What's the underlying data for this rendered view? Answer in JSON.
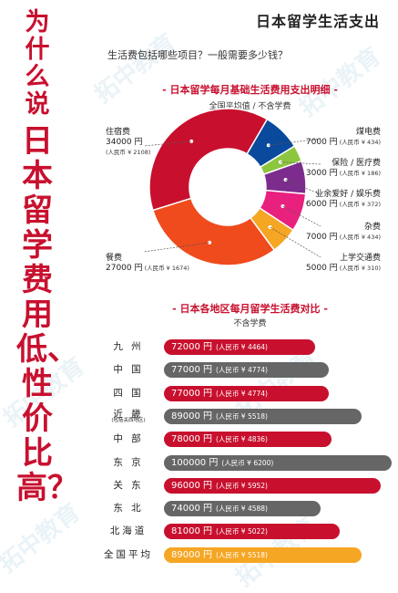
{
  "side_title": {
    "line1": "为什么说",
    "line2": "日本留学费用低、性价比高？"
  },
  "page_title": "日本留学生活支出",
  "question": "生活费包括哪些项目？一般需要多少钱？",
  "watermark": "拓中教育",
  "pie_section": {
    "title": "- 日本留学每月基础生活费用支出明细 -",
    "subtitle": "全国平均值 / 不含学费"
  },
  "bar_section": {
    "title": "- 日本各地区每月留学生活费对比 -",
    "subtitle": "不含学费"
  },
  "chart_data": [
    {
      "type": "pie",
      "title": "日本留学每月基础生活费用支出明细",
      "subtitle": "全国平均值 / 不含学费",
      "unit": "円",
      "categories": [
        "住宿费",
        "煤电费",
        "保险 / 医疗费",
        "业余爱好 / 娱乐费",
        "杂费",
        "上学交通费",
        "餐费"
      ],
      "values": [
        34000,
        7000,
        3000,
        6000,
        7000,
        5000,
        27000
      ],
      "value_labels": [
        "34000 円",
        "7000 円",
        "3000 円",
        "6000 円",
        "7000 円",
        "5000 円",
        "27000 円"
      ],
      "rmb_labels": [
        "(人民币 ¥ 2108)",
        "(人民币 ¥ 434)",
        "(人民币 ¥ 186)",
        "(人民币 ¥ 372)",
        "(人民币 ¥ 434)",
        "(人民币 ¥ 310)",
        "(人民币 ¥ 1674)"
      ],
      "colors": [
        "#c8102e",
        "#0a4a9c",
        "#8cc63f",
        "#7b2c8c",
        "#e8217f",
        "#f5a623",
        "#ef4b1c"
      ]
    },
    {
      "type": "bar",
      "title": "日本各地区每月留学生活费对比",
      "subtitle": "不含学费",
      "unit": "円",
      "categories": [
        "九州",
        "中国",
        "四国",
        "近畿",
        "中部",
        "东京",
        "关东",
        "东北",
        "北海道",
        "全国平均"
      ],
      "category_labels": [
        "九 州",
        "中 国",
        "四 国",
        "近 畿",
        "中 部",
        "东 京",
        "关 东",
        "东 北",
        "北海道",
        "全国平均"
      ],
      "category_notes": [
        "",
        "",
        "",
        "(包括关西地区)",
        "",
        "",
        "",
        "",
        "",
        ""
      ],
      "values": [
        72000,
        77000,
        77000,
        89000,
        78000,
        100000,
        96000,
        74000,
        81000,
        89000
      ],
      "value_labels": [
        "72000 円",
        "77000 円",
        "77000 円",
        "89000 円",
        "78000 円",
        "100000 円",
        "96000 円",
        "74000 円",
        "81000 円",
        "89000 円"
      ],
      "rmb_labels": [
        "(人民币 ¥ 4464)",
        "(人民币 ¥ 4774)",
        "(人民币 ¥ 4774)",
        "(人民币 ¥ 5518)",
        "(人民币 ¥ 4836)",
        "(人民币 ¥ 6200)",
        "(人民币 ¥ 5952)",
        "(人民币 ¥ 4588)",
        "(人民币 ¥ 5022)",
        "(人民币 ¥ 5518)"
      ],
      "colors": [
        "#c8102e",
        "#666666",
        "#c8102e",
        "#666666",
        "#c8102e",
        "#666666",
        "#c8102e",
        "#666666",
        "#c8102e",
        "#f5a623"
      ]
    }
  ]
}
